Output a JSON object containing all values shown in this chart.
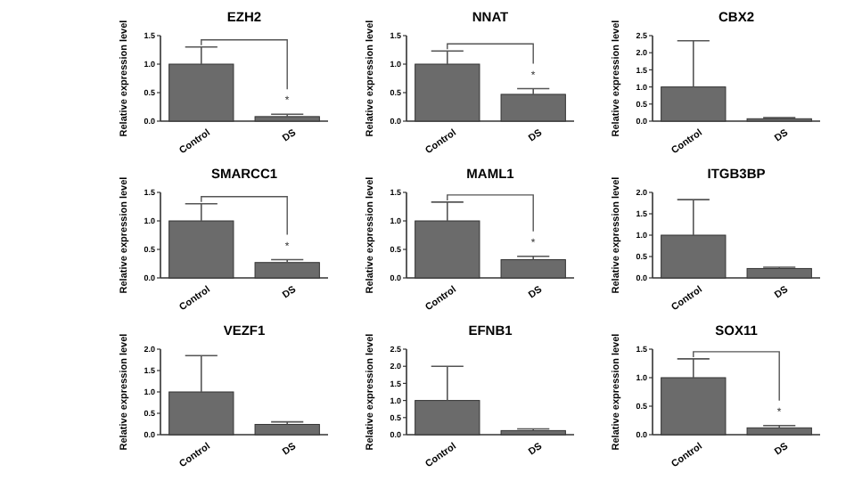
{
  "chart_data": [
    {
      "type": "bar",
      "title": "EZH2",
      "ylabel": "Relative expression level",
      "categories": [
        "Control",
        "DS"
      ],
      "values": [
        1.0,
        0.08
      ],
      "errors": [
        [
          1.0,
          1.3
        ],
        [
          0.08,
          0.12
        ]
      ],
      "color": "#6b6b6b",
      "ylim": [
        0,
        1.5
      ],
      "yticks": [
        {
          "value": 0,
          "label": "0.0"
        },
        0.5,
        {
          "value": 1,
          "label": "1.0"
        },
        1.5
      ],
      "annotations": [
        "*"
      ]
    },
    {
      "type": "bar",
      "title": "NNAT",
      "ylabel": "Relative expression level",
      "categories": [
        "Control",
        "DS"
      ],
      "values": [
        1.0,
        0.47
      ],
      "errors": [
        [
          1.0,
          1.23
        ],
        [
          0.47,
          0.57
        ]
      ],
      "color": "#6b6b6b",
      "ylim": [
        0,
        1.5
      ],
      "yticks": [
        {
          "value": 0,
          "label": "0.0"
        },
        0.5,
        {
          "value": 1,
          "label": "1.0"
        },
        1.5
      ],
      "annotations": [
        "*"
      ]
    },
    {
      "type": "bar",
      "title": "CBX2",
      "ylabel": "Relative expression level",
      "categories": [
        "Control",
        "DS"
      ],
      "values": [
        1.0,
        0.07
      ],
      "errors": [
        [
          1.0,
          2.35
        ],
        [
          0.07,
          0.1
        ]
      ],
      "color": "#6b6b6b",
      "ylim": [
        0,
        2.5
      ],
      "yticks": [
        {
          "value": 0,
          "label": "0.0"
        },
        0.5,
        {
          "value": 1,
          "label": "1.0"
        },
        1.5,
        {
          "value": 2,
          "label": "2.0"
        },
        2.5
      ]
    },
    {
      "type": "bar",
      "title": "SMARCC1",
      "ylabel": "Relative expression level",
      "categories": [
        "Control",
        "DS"
      ],
      "values": [
        1.0,
        0.27
      ],
      "errors": [
        [
          1.0,
          1.3
        ],
        [
          0.27,
          0.32
        ]
      ],
      "color": "#6b6b6b",
      "ylim": [
        0,
        1.5
      ],
      "yticks": [
        {
          "value": 0,
          "label": "0.0"
        },
        0.5,
        {
          "value": 1,
          "label": "1.0"
        },
        1.5
      ],
      "annotations": [
        "*"
      ]
    },
    {
      "type": "bar",
      "title": "MAML1",
      "ylabel": "Relative expression level",
      "categories": [
        "Control",
        "DS"
      ],
      "values": [
        1.0,
        0.32
      ],
      "errors": [
        [
          1.0,
          1.33
        ],
        [
          0.32,
          0.38
        ]
      ],
      "color": "#6b6b6b",
      "ylim": [
        0,
        1.5
      ],
      "yticks": [
        {
          "value": 0,
          "label": "0.0"
        },
        0.5,
        {
          "value": 1,
          "label": "1.0"
        },
        1.5
      ],
      "annotations": [
        "*"
      ]
    },
    {
      "type": "bar",
      "title": "ITGB3BP",
      "ylabel": "Relative expression level",
      "categories": [
        "Control",
        "DS"
      ],
      "values": [
        1.0,
        0.22
      ],
      "errors": [
        [
          1.0,
          1.83
        ],
        [
          0.22,
          0.25
        ]
      ],
      "color": "#6b6b6b",
      "ylim": [
        0,
        2
      ],
      "yticks": [
        {
          "value": 0,
          "label": "0.0"
        },
        0.5,
        {
          "value": 1,
          "label": "1.0"
        },
        1.5,
        {
          "value": 2,
          "label": "2.0"
        }
      ]
    },
    {
      "type": "bar",
      "title": "VEZF1",
      "ylabel": "Relative expression level",
      "categories": [
        "Control",
        "DS"
      ],
      "values": [
        1.0,
        0.24
      ],
      "errors": [
        [
          1.0,
          1.85
        ],
        [
          0.24,
          0.3
        ]
      ],
      "color": "#6b6b6b",
      "ylim": [
        0,
        2
      ],
      "yticks": [
        {
          "value": 0,
          "label": "0.0"
        },
        0.5,
        {
          "value": 1,
          "label": "1.0"
        },
        1.5,
        {
          "value": 2,
          "label": "2.0"
        }
      ]
    },
    {
      "type": "bar",
      "title": "EFNB1",
      "ylabel": "Relative expression level",
      "categories": [
        "Control",
        "DS"
      ],
      "values": [
        1.0,
        0.12
      ],
      "errors": [
        [
          1.0,
          2.0
        ],
        [
          0.12,
          0.17
        ]
      ],
      "color": "#6b6b6b",
      "ylim": [
        0,
        2.5
      ],
      "yticks": [
        {
          "value": 0,
          "label": "0.0"
        },
        0.5,
        {
          "value": 1,
          "label": "1.0"
        },
        1.5,
        {
          "value": 2,
          "label": "2.0"
        },
        2.5
      ]
    },
    {
      "type": "bar",
      "title": "SOX11",
      "ylabel": "Relative expression level",
      "categories": [
        "Control",
        "DS"
      ],
      "values": [
        1.0,
        0.12
      ],
      "errors": [
        [
          1.0,
          1.33
        ],
        [
          0.12,
          0.16
        ]
      ],
      "color": "#6b6b6b",
      "ylim": [
        0,
        1.5
      ],
      "yticks": [
        {
          "value": 0,
          "label": "0.0"
        },
        0.5,
        {
          "value": 1,
          "label": "1.0"
        },
        1.5
      ],
      "annotations": [
        "*"
      ]
    }
  ]
}
